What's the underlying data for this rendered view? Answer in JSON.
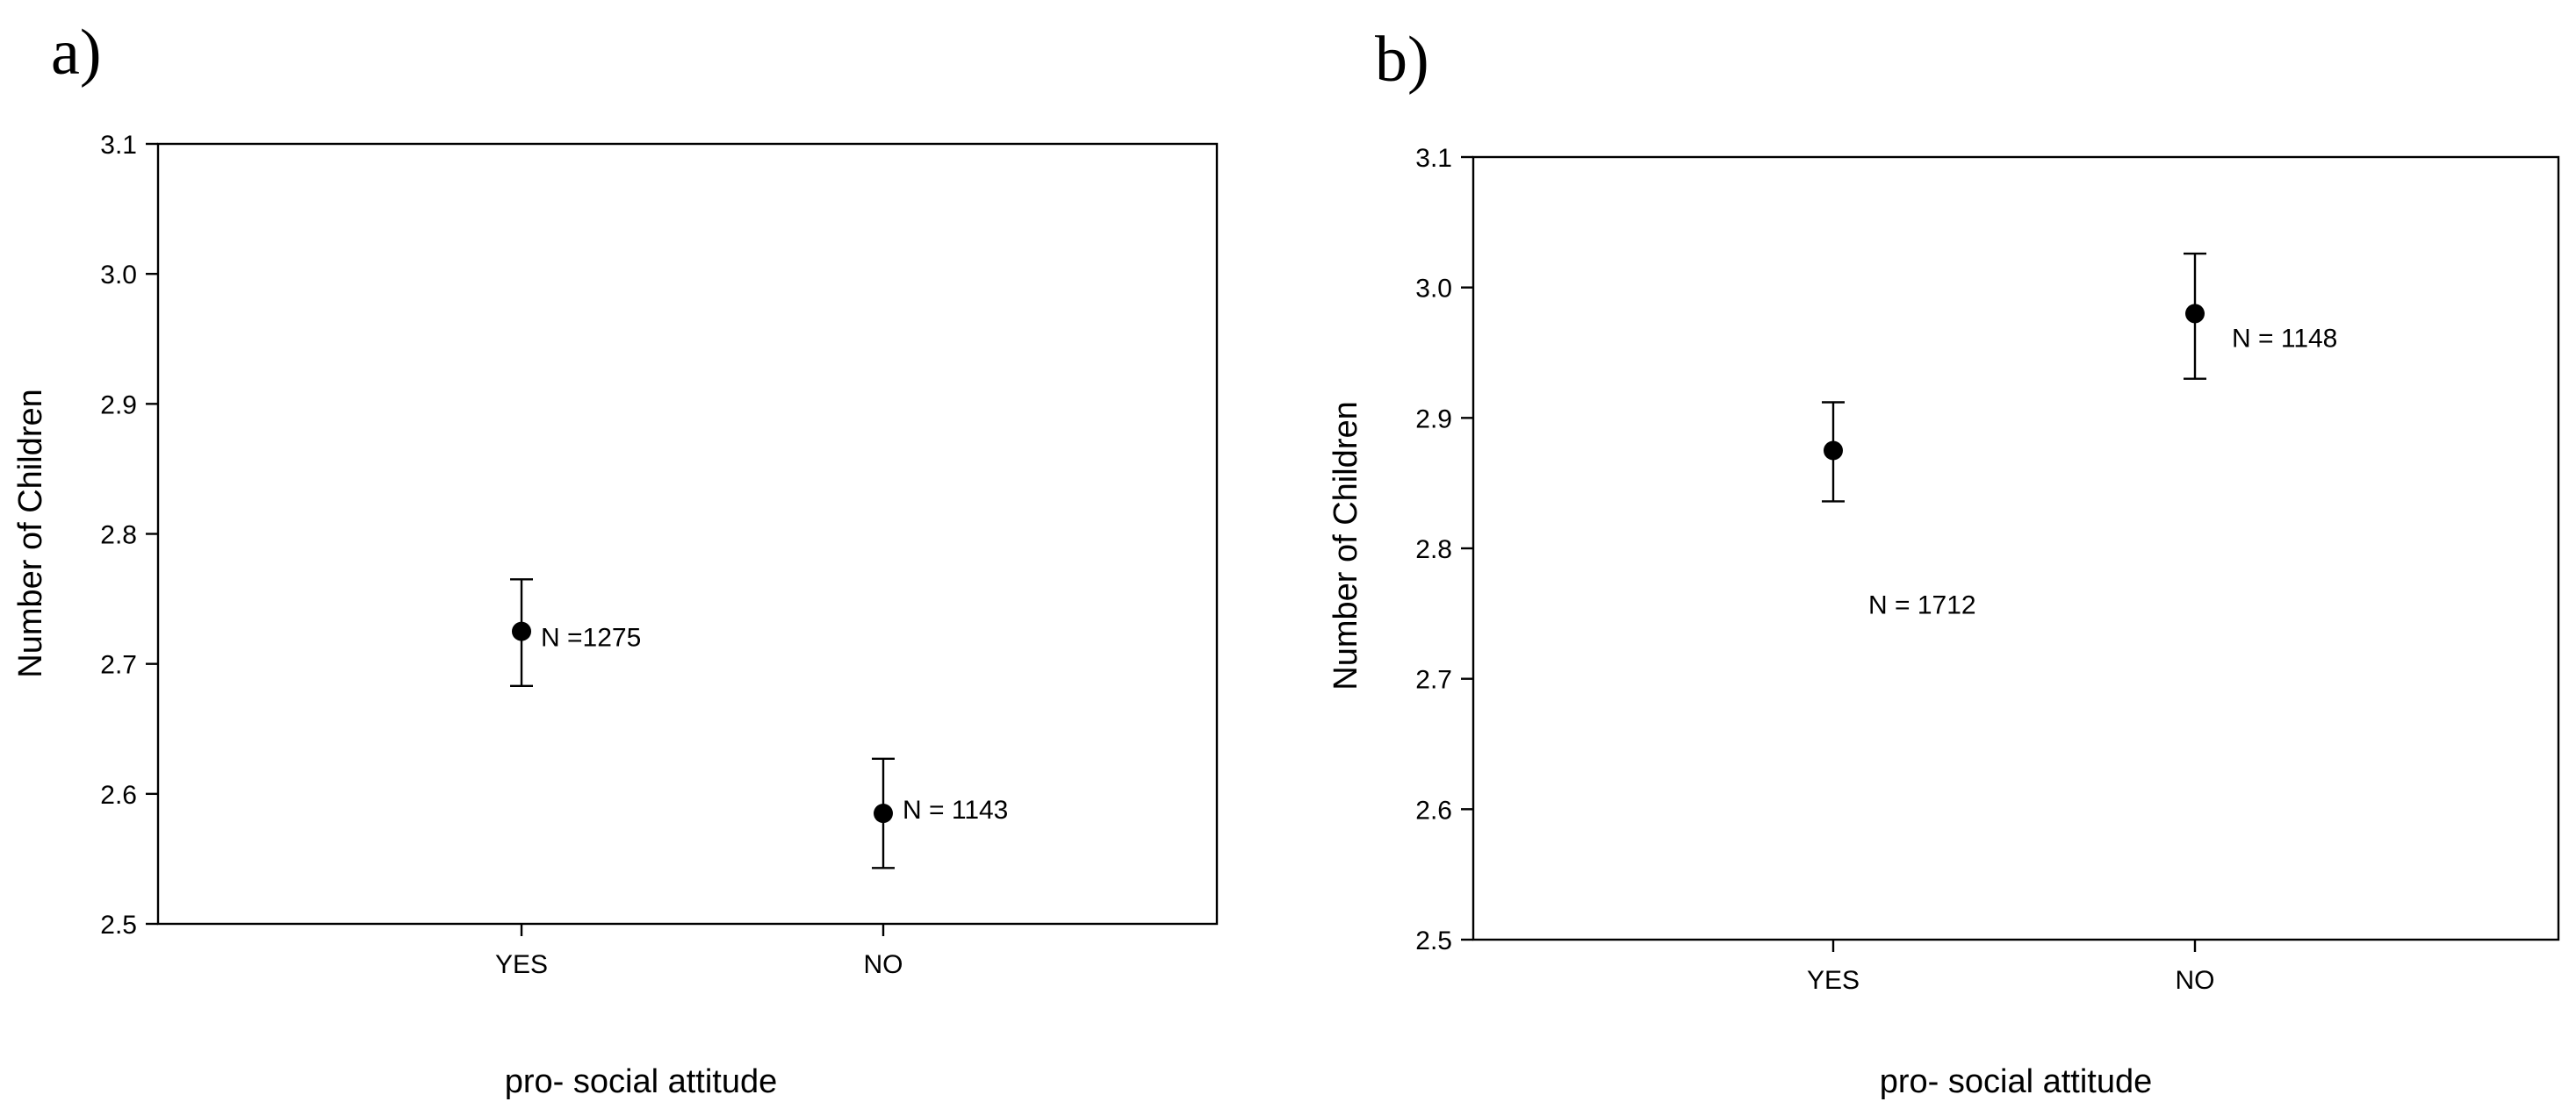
{
  "figure": {
    "panels": [
      "a)",
      "b)"
    ]
  },
  "chart_data": [
    {
      "type": "scatter",
      "panel": "a)",
      "title": "",
      "xlabel": "pro- social attitude",
      "ylabel": "Number of Children",
      "categories": [
        "YES",
        "NO"
      ],
      "ylim": [
        2.5,
        3.1
      ],
      "yticks": [
        "2.5",
        "2.6",
        "2.7",
        "2.8",
        "2.9",
        "3.0",
        "3.1"
      ],
      "series": [
        {
          "values": [
            2.725,
            2.585
          ],
          "error_low": [
            2.683,
            2.543
          ],
          "error_high": [
            2.765,
            2.627
          ],
          "labels": [
            "N =1275",
            "N = 1143"
          ]
        }
      ],
      "grid": false
    },
    {
      "type": "scatter",
      "panel": "b)",
      "title": "",
      "xlabel": "pro- social attitude",
      "ylabel": "Number of Children",
      "categories": [
        "YES",
        "NO"
      ],
      "ylim": [
        2.5,
        3.1
      ],
      "yticks": [
        "2.5",
        "2.6",
        "2.7",
        "2.8",
        "2.9",
        "3.0",
        "3.1"
      ],
      "series": [
        {
          "values": [
            2.875,
            2.98
          ],
          "error_low": [
            2.836,
            2.93
          ],
          "error_high": [
            2.912,
            3.026
          ],
          "labels": [
            "N = 1712",
            "N = 1148"
          ]
        }
      ],
      "grid": false
    }
  ]
}
